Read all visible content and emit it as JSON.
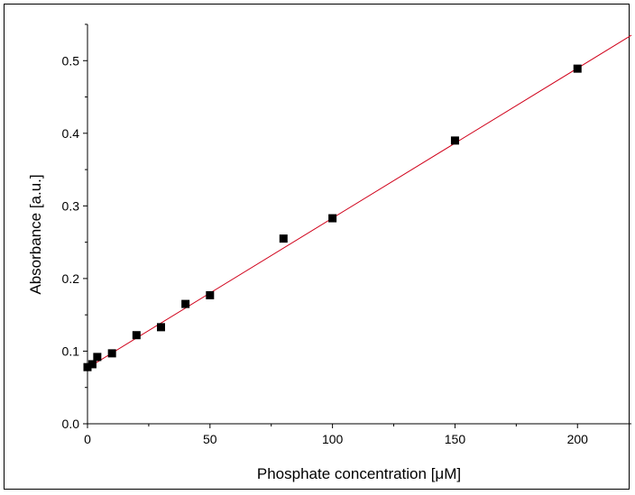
{
  "chart_data": {
    "type": "scatter",
    "title": "",
    "xlabel": "Phosphate concentration [μM]",
    "ylabel": "Absorbance [a.u.]",
    "xlim": [
      0,
      222
    ],
    "ylim": [
      0,
      0.55
    ],
    "x_ticks": [
      0,
      50,
      100,
      150,
      200
    ],
    "x_tick_labels": [
      "0",
      "50",
      "100",
      "150",
      "200"
    ],
    "y_ticks": [
      0.0,
      0.1,
      0.2,
      0.3,
      0.4,
      0.5
    ],
    "y_tick_labels": [
      "0.0",
      "0.1",
      "0.2",
      "0.3",
      "0.4",
      "0.5"
    ],
    "grid": false,
    "legend": false,
    "series": [
      {
        "marker": "square",
        "color": "#000000",
        "points": [
          {
            "x": 0,
            "y": 0.078
          },
          {
            "x": 2,
            "y": 0.082
          },
          {
            "x": 4,
            "y": 0.092
          },
          {
            "x": 10,
            "y": 0.097
          },
          {
            "x": 20,
            "y": 0.122
          },
          {
            "x": 30,
            "y": 0.133
          },
          {
            "x": 40,
            "y": 0.165
          },
          {
            "x": 50,
            "y": 0.177
          },
          {
            "x": 80,
            "y": 0.255
          },
          {
            "x": 100,
            "y": 0.283
          },
          {
            "x": 150,
            "y": 0.39
          },
          {
            "x": 200,
            "y": 0.489
          }
        ]
      }
    ],
    "fit_line": {
      "color": "#d0021b",
      "x": [
        0,
        222
      ],
      "y": [
        0.0768,
        0.535
      ]
    }
  }
}
